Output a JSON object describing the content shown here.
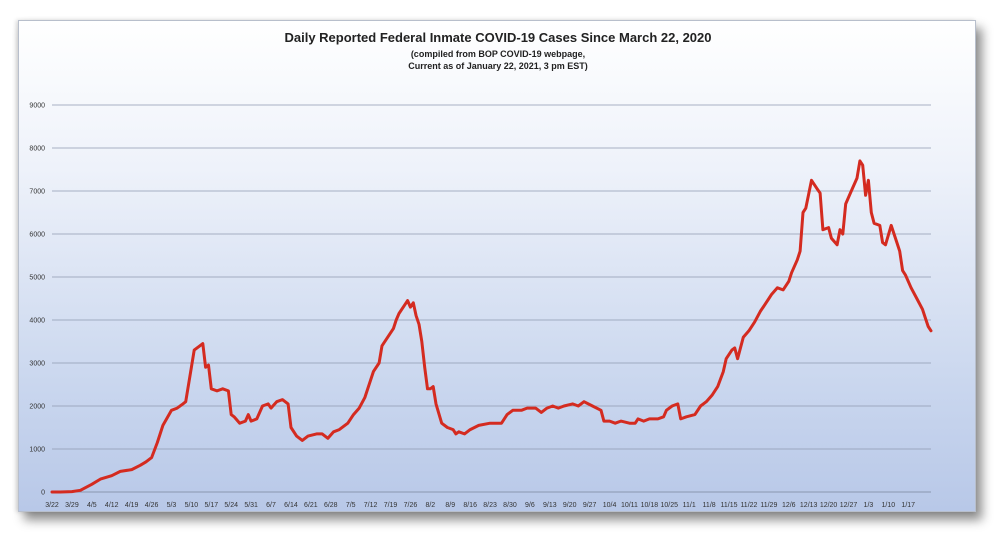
{
  "chart_data": {
    "type": "line",
    "title": "Daily Reported Federal Inmate COVID-19 Cases Since March 22, 2020",
    "subtitle_lines": [
      "(compiled from BOP COVID-19 webpage,",
      "Current as of January 22, 2021, 3 pm EST)"
    ],
    "xlabel": "",
    "ylabel": "",
    "ylim": [
      0,
      9000
    ],
    "yticks": [
      0,
      1000,
      2000,
      3000,
      4000,
      5000,
      6000,
      7000,
      8000,
      9000
    ],
    "x_tick_labels": [
      "3/22",
      "3/29",
      "4/5",
      "4/12",
      "4/19",
      "4/26",
      "5/3",
      "5/10",
      "5/17",
      "5/24",
      "5/31",
      "6/7",
      "6/14",
      "6/21",
      "6/28",
      "7/5",
      "7/12",
      "7/19",
      "7/26",
      "8/2",
      "8/9",
      "8/16",
      "8/23",
      "8/30",
      "9/6",
      "9/13",
      "9/20",
      "9/27",
      "10/4",
      "10/11",
      "10/18",
      "10/25",
      "11/1",
      "11/8",
      "11/15",
      "11/22",
      "11/29",
      "12/6",
      "12/13",
      "12/20",
      "12/27",
      "1/3",
      "1/10",
      "1/17"
    ],
    "grid": "horizontal",
    "legend": "none",
    "series": [
      {
        "color": "#d42b20",
        "points": [
          [
            0,
            0
          ],
          [
            3,
            0
          ],
          [
            7,
            10
          ],
          [
            10,
            40
          ],
          [
            14,
            180
          ],
          [
            17,
            300
          ],
          [
            21,
            380
          ],
          [
            24,
            480
          ],
          [
            28,
            520
          ],
          [
            31,
            620
          ],
          [
            33,
            700
          ],
          [
            35,
            800
          ],
          [
            37,
            1150
          ],
          [
            39,
            1550
          ],
          [
            42,
            1900
          ],
          [
            44,
            1950
          ],
          [
            46,
            2050
          ],
          [
            47,
            2100
          ],
          [
            49,
            2900
          ],
          [
            50,
            3300
          ],
          [
            52,
            3400
          ],
          [
            53,
            3450
          ],
          [
            54,
            2900
          ],
          [
            55,
            2950
          ],
          [
            56,
            2400
          ],
          [
            58,
            2350
          ],
          [
            60,
            2400
          ],
          [
            62,
            2350
          ],
          [
            63,
            1800
          ],
          [
            64,
            1750
          ],
          [
            66,
            1600
          ],
          [
            68,
            1650
          ],
          [
            69,
            1800
          ],
          [
            70,
            1650
          ],
          [
            72,
            1700
          ],
          [
            74,
            2000
          ],
          [
            76,
            2050
          ],
          [
            77,
            1950
          ],
          [
            79,
            2100
          ],
          [
            81,
            2150
          ],
          [
            83,
            2050
          ],
          [
            84,
            1500
          ],
          [
            86,
            1300
          ],
          [
            88,
            1200
          ],
          [
            90,
            1300
          ],
          [
            93,
            1350
          ],
          [
            95,
            1350
          ],
          [
            97,
            1250
          ],
          [
            99,
            1400
          ],
          [
            101,
            1450
          ],
          [
            104,
            1600
          ],
          [
            106,
            1800
          ],
          [
            108,
            1950
          ],
          [
            110,
            2200
          ],
          [
            113,
            2800
          ],
          [
            115,
            3000
          ],
          [
            116,
            3400
          ],
          [
            118,
            3600
          ],
          [
            120,
            3800
          ],
          [
            121,
            4000
          ],
          [
            122,
            4150
          ],
          [
            124,
            4350
          ],
          [
            125,
            4450
          ],
          [
            126,
            4300
          ],
          [
            127,
            4400
          ],
          [
            128,
            4100
          ],
          [
            129,
            3900
          ],
          [
            130,
            3500
          ],
          [
            131,
            2900
          ],
          [
            132,
            2400
          ],
          [
            133,
            2400
          ],
          [
            134,
            2450
          ],
          [
            135,
            2050
          ],
          [
            137,
            1600
          ],
          [
            139,
            1500
          ],
          [
            141,
            1450
          ],
          [
            142,
            1350
          ],
          [
            143,
            1400
          ],
          [
            145,
            1350
          ],
          [
            147,
            1450
          ],
          [
            150,
            1550
          ],
          [
            154,
            1600
          ],
          [
            158,
            1600
          ],
          [
            160,
            1800
          ],
          [
            162,
            1900
          ],
          [
            165,
            1900
          ],
          [
            167,
            1950
          ],
          [
            170,
            1950
          ],
          [
            172,
            1850
          ],
          [
            174,
            1950
          ],
          [
            176,
            2000
          ],
          [
            178,
            1950
          ],
          [
            180,
            2000
          ],
          [
            183,
            2050
          ],
          [
            185,
            2000
          ],
          [
            187,
            2100
          ],
          [
            190,
            2000
          ],
          [
            193,
            1900
          ],
          [
            194,
            1650
          ],
          [
            196,
            1650
          ],
          [
            198,
            1600
          ],
          [
            200,
            1650
          ],
          [
            203,
            1600
          ],
          [
            205,
            1600
          ],
          [
            206,
            1700
          ],
          [
            208,
            1650
          ],
          [
            210,
            1700
          ],
          [
            213,
            1700
          ],
          [
            215,
            1750
          ],
          [
            216,
            1900
          ],
          [
            218,
            2000
          ],
          [
            220,
            2050
          ],
          [
            221,
            1700
          ],
          [
            223,
            1750
          ],
          [
            226,
            1800
          ],
          [
            228,
            2000
          ],
          [
            230,
            2100
          ],
          [
            232,
            2250
          ],
          [
            234,
            2450
          ],
          [
            236,
            2800
          ],
          [
            237,
            3100
          ],
          [
            239,
            3300
          ],
          [
            240,
            3350
          ],
          [
            241,
            3100
          ],
          [
            243,
            3600
          ],
          [
            245,
            3750
          ],
          [
            247,
            3950
          ],
          [
            249,
            4200
          ],
          [
            250,
            4300
          ],
          [
            252,
            4500
          ],
          [
            253,
            4600
          ],
          [
            255,
            4750
          ],
          [
            257,
            4700
          ],
          [
            259,
            4900
          ],
          [
            260,
            5100
          ],
          [
            262,
            5400
          ],
          [
            263,
            5600
          ],
          [
            264,
            6500
          ],
          [
            265,
            6600
          ],
          [
            267,
            7250
          ],
          [
            269,
            7050
          ],
          [
            270,
            6950
          ],
          [
            271,
            6100
          ],
          [
            273,
            6150
          ],
          [
            274,
            5900
          ],
          [
            276,
            5750
          ],
          [
            277,
            6100
          ],
          [
            278,
            6000
          ],
          [
            279,
            6700
          ],
          [
            281,
            7000
          ],
          [
            283,
            7300
          ],
          [
            284,
            7700
          ],
          [
            285,
            7600
          ],
          [
            286,
            6900
          ],
          [
            287,
            7250
          ],
          [
            288,
            6500
          ],
          [
            289,
            6250
          ],
          [
            291,
            6200
          ],
          [
            292,
            5800
          ],
          [
            293,
            5750
          ],
          [
            295,
            6200
          ],
          [
            297,
            5800
          ],
          [
            298,
            5600
          ],
          [
            299,
            5150
          ],
          [
            300,
            5050
          ],
          [
            302,
            4750
          ],
          [
            304,
            4500
          ],
          [
            306,
            4250
          ],
          [
            307,
            4050
          ],
          [
            308,
            3850
          ],
          [
            309,
            3750
          ]
        ]
      }
    ]
  }
}
